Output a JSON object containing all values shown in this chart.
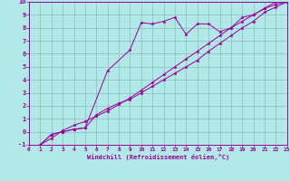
{
  "title": "",
  "xlabel": "Windchill (Refroidissement éolien,°C)",
  "bg_color": "#b2e8e8",
  "grid_color": "#8bbcbc",
  "line_color": "#990099",
  "xlim": [
    0,
    23
  ],
  "ylim": [
    -1,
    10
  ],
  "xticks": [
    0,
    1,
    2,
    3,
    4,
    5,
    6,
    7,
    8,
    9,
    10,
    11,
    12,
    13,
    14,
    15,
    16,
    17,
    18,
    19,
    20,
    21,
    22,
    23
  ],
  "yticks": [
    -1,
    0,
    1,
    2,
    3,
    4,
    5,
    6,
    7,
    8,
    9,
    10
  ],
  "line1_x": [
    1,
    2,
    3,
    4,
    5,
    7,
    9,
    10,
    11,
    12,
    13,
    14,
    15,
    16,
    17,
    18,
    19,
    20,
    21,
    22,
    23
  ],
  "line1_y": [
    -1,
    -0.2,
    0.0,
    0.2,
    0.3,
    4.7,
    6.3,
    8.4,
    8.3,
    8.5,
    8.8,
    7.5,
    8.3,
    8.3,
    7.7,
    8.0,
    8.8,
    9.0,
    9.5,
    10.0,
    10.0
  ],
  "line2_x": [
    1,
    2,
    3,
    4,
    5,
    6,
    7,
    8,
    9,
    10,
    11,
    12,
    13,
    14,
    15,
    16,
    17,
    18,
    19,
    20,
    21,
    22,
    23
  ],
  "line2_y": [
    -1,
    -0.2,
    0.0,
    0.2,
    0.3,
    1.3,
    1.8,
    2.2,
    2.5,
    3.0,
    3.5,
    4.0,
    4.5,
    5.0,
    5.5,
    6.2,
    6.8,
    7.4,
    8.0,
    8.5,
    9.2,
    9.6,
    10.0
  ],
  "line3_x": [
    1,
    2,
    3,
    4,
    5,
    6,
    7,
    8,
    9,
    10,
    11,
    12,
    13,
    14,
    15,
    16,
    17,
    18,
    19,
    20,
    21,
    22,
    23
  ],
  "line3_y": [
    -1,
    -0.5,
    0.1,
    0.5,
    0.8,
    1.2,
    1.6,
    2.1,
    2.6,
    3.2,
    3.8,
    4.4,
    5.0,
    5.6,
    6.2,
    6.8,
    7.4,
    8.0,
    8.5,
    9.0,
    9.5,
    9.8,
    10.0
  ]
}
